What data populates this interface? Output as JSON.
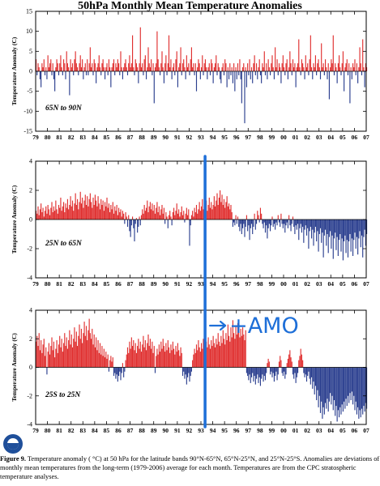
{
  "chart_data": [
    {
      "type": "bar",
      "panel": 1,
      "region_label": "65N to 90N",
      "ylabel": "Temperature Anomaly (C)",
      "ylim": [
        -15,
        15
      ],
      "yticks": [
        -15,
        -10,
        -5,
        0,
        5,
        10,
        15
      ],
      "xticks": [
        "79",
        "80",
        "81",
        "82",
        "83",
        "84",
        "85",
        "86",
        "87",
        "88",
        "89",
        "90",
        "91",
        "92",
        "93",
        "94",
        "95",
        "96",
        "97",
        "98",
        "99",
        "00",
        "01",
        "02",
        "03",
        "04",
        "05",
        "06",
        "07"
      ],
      "x_start": 1979.0,
      "x_end": 2007.0,
      "step": 0.08333,
      "positive_color": "#e03030",
      "negative_color": "#2b3f8f",
      "values": [
        3,
        -1,
        2,
        1,
        -2,
        -4,
        2,
        1,
        3,
        -1,
        1,
        -2,
        4,
        1,
        2,
        3,
        -1,
        2,
        -2,
        -5,
        1,
        3,
        2,
        -1,
        2,
        4,
        1,
        -1,
        3,
        2,
        -2,
        5,
        2,
        1,
        -6,
        3,
        1,
        2,
        -1,
        3,
        5,
        2,
        1,
        -1,
        2,
        4,
        1,
        3,
        -2,
        1,
        2,
        -1,
        3,
        -1,
        2,
        6,
        1,
        2,
        -1,
        3,
        2,
        -3,
        1,
        2,
        4,
        1,
        -1,
        2,
        3,
        1,
        -2,
        1,
        2,
        -1,
        3,
        1,
        -4,
        1,
        2,
        3,
        -1,
        2,
        1,
        3,
        2,
        -1,
        5,
        1,
        -2,
        1,
        2,
        3,
        1,
        -1,
        2,
        4,
        1,
        2,
        9,
        1,
        -1,
        3,
        2,
        1,
        -3,
        2,
        11,
        1,
        2,
        -1,
        3,
        4,
        -2,
        1,
        6,
        2,
        1,
        3,
        -1,
        2,
        -8,
        1,
        2,
        10,
        3,
        1,
        -1,
        2,
        5,
        1,
        -3,
        2,
        4,
        -1,
        2,
        9,
        1,
        3,
        -2,
        1,
        2,
        -1,
        3,
        5,
        -4,
        1,
        2,
        6,
        -1,
        2,
        3,
        1,
        -2,
        4,
        1,
        2,
        -1,
        3,
        6,
        1,
        2,
        -1,
        2,
        -5,
        1,
        3,
        2,
        -2,
        1,
        4,
        -1,
        2,
        3,
        1,
        -2,
        1,
        2,
        -1,
        3,
        2,
        -3,
        1,
        2,
        4,
        -1,
        2,
        1,
        -2,
        -3,
        1,
        2,
        -1,
        3,
        2,
        -4,
        1,
        -2,
        2,
        -1,
        1,
        -3,
        2,
        -5,
        1,
        -2,
        2,
        -1,
        3,
        -2,
        -8,
        1,
        2,
        -13,
        1,
        -4,
        2,
        -1,
        3,
        -2,
        1,
        -3,
        2,
        4,
        -1,
        2,
        -2,
        1,
        3,
        -1,
        -3,
        2,
        1,
        5,
        -1,
        2,
        -2,
        3,
        1,
        -1,
        2,
        4,
        1,
        -2,
        6,
        1,
        3,
        -1,
        2,
        1,
        -3,
        2,
        4,
        1,
        -1,
        2,
        3,
        -2,
        1,
        5,
        2,
        -1,
        3,
        1,
        2,
        -4,
        1,
        2,
        8,
        1,
        -1,
        3,
        2,
        1,
        -2,
        4,
        1,
        2,
        -1,
        3,
        9,
        1,
        -2,
        2,
        1,
        4,
        -1,
        2,
        3,
        1,
        -2,
        7,
        1,
        2,
        -1,
        3,
        1,
        -2,
        2,
        -7,
        1,
        3,
        2,
        9,
        -1,
        2,
        1,
        -3,
        2,
        4,
        1,
        -1,
        2,
        5,
        -5,
        1,
        2,
        3,
        -1,
        2,
        -8,
        1,
        -2,
        2,
        1,
        3,
        -1,
        2,
        -3,
        1,
        6,
        2,
        -1,
        8,
        1,
        -4,
        2,
        1,
        -1,
        3,
        2,
        1,
        -2,
        8,
        1,
        -1,
        2
      ],
      "polarity_switch_year": null
    },
    {
      "type": "bar",
      "panel": 2,
      "region_label": "25N to 65N",
      "ylabel": "Temperature Anomaly (C)",
      "ylim": [
        -4,
        4
      ],
      "yticks": [
        -4,
        -2,
        0,
        2,
        4
      ],
      "xticks": [
        "79",
        "80",
        "81",
        "82",
        "83",
        "84",
        "85",
        "86",
        "87",
        "88",
        "89",
        "90",
        "91",
        "92",
        "93",
        "94",
        "95",
        "96",
        "97",
        "98",
        "99",
        "00",
        "01",
        "02",
        "03",
        "04",
        "05",
        "06",
        "07"
      ],
      "x_start": 1979.0,
      "x_end": 2007.0,
      "step": 0.08333,
      "positive_color": "#e03030",
      "negative_color": "#2b3f8f",
      "values": [
        0.6,
        0.4,
        0.9,
        0.3,
        0.7,
        1.1,
        0.5,
        0.8,
        0.2,
        0.6,
        0.9,
        0.4,
        1.0,
        0.7,
        0.3,
        0.8,
        1.2,
        0.5,
        0.9,
        0.6,
        1.3,
        0.7,
        0.4,
        1.0,
        0.8,
        1.5,
        0.6,
        0.9,
        1.2,
        0.5,
        1.1,
        0.8,
        1.4,
        0.7,
        1.0,
        1.6,
        0.9,
        1.3,
        0.6,
        1.1,
        1.8,
        1.0,
        1.4,
        0.7,
        1.2,
        1.9,
        1.1,
        1.5,
        0.8,
        1.3,
        1.7,
        1.0,
        1.6,
        0.9,
        1.4,
        1.8,
        1.2,
        0.8,
        1.5,
        1.0,
        1.7,
        1.3,
        0.9,
        1.6,
        1.1,
        0.7,
        1.4,
        1.0,
        1.3,
        0.6,
        1.2,
        0.9,
        1.5,
        0.8,
        1.1,
        0.5,
        1.0,
        0.7,
        1.2,
        0.4,
        0.9,
        0.6,
        1.0,
        0.3,
        0.8,
        0.5,
        0.7,
        0.2,
        0.6,
        0.4,
        -0.3,
        0.5,
        0.2,
        -0.5,
        0.3,
        -0.8,
        -1.2,
        -0.4,
        0.2,
        -0.6,
        -1.5,
        -0.3,
        0.1,
        -0.9,
        -0.5,
        0.2,
        -0.4,
        0.3,
        0.7,
        0.4,
        1.0,
        0.6,
        0.8,
        1.3,
        0.5,
        0.9,
        1.2,
        0.7,
        1.1,
        0.6,
        1.0,
        0.4,
        0.8,
        1.2,
        0.5,
        0.9,
        0.3,
        0.7,
        1.0,
        0.4,
        0.8,
        -0.3,
        0.5,
        0.2,
        -0.6,
        0.3,
        0.6,
        0.2,
        -0.4,
        0.5,
        0.8,
        0.3,
        0.6,
        1.1,
        0.4,
        0.7,
        0.2,
        0.5,
        0.9,
        0.3,
        0.6,
        -0.2,
        0.4,
        0.8,
        0.3,
        0.7,
        -1.8,
        -0.4,
        0.3,
        0.6,
        0.2,
        0.8,
        0.5,
        1.0,
        0.4,
        0.7,
        1.2,
        0.6,
        0.9,
        1.4,
        0.7,
        1.1,
        0.8,
        1.3,
        0.6,
        1.0,
        1.5,
        0.8,
        1.2,
        0.7,
        1.0,
        1.6,
        0.9,
        1.3,
        1.8,
        1.0,
        1.5,
        2.0,
        1.2,
        1.7,
        1.0,
        1.4,
        0.8,
        1.2,
        1.6,
        0.9,
        1.1,
        0.7,
        1.0,
        0.5,
        -0.5,
        -0.2,
        -0.4,
        0.3,
        -0.3,
        0.2,
        -0.5,
        -0.8,
        -0.3,
        -1.0,
        -0.6,
        -0.3,
        -1.2,
        -0.5,
        0.3,
        -0.8,
        -0.4,
        -1.4,
        -0.6,
        -0.3,
        -1.0,
        -0.5,
        0.4,
        -0.7,
        -0.3,
        0.6,
        0.3,
        -0.2,
        0.8,
        0.4,
        -0.3,
        -0.6,
        -0.2,
        -0.9,
        -0.4,
        -1.3,
        -0.6,
        -0.3,
        -0.8,
        -0.4,
        0.2,
        -0.5,
        -0.3,
        -0.7,
        -0.2,
        -0.4,
        0.3,
        -0.2,
        -0.5,
        0.4,
        -0.3,
        -0.6,
        -0.3,
        -0.9,
        -0.4,
        -0.2,
        -0.6,
        0.3,
        -0.4,
        -0.8,
        -0.3,
        0.2,
        -0.5,
        -1.0,
        -0.4,
        -0.7,
        -0.3,
        -1.4,
        -0.6,
        -0.3,
        -0.9,
        -0.5,
        -1.6,
        -0.7,
        -0.4,
        -1.1,
        -0.6,
        -2.0,
        -0.8,
        -0.5,
        -1.3,
        -0.7,
        -1.8,
        -0.9,
        -0.5,
        -1.5,
        -0.8,
        -2.2,
        -1.0,
        -0.6,
        -1.6,
        -0.9,
        -2.6,
        -1.1,
        -0.7,
        -1.8,
        -1.0,
        -2.3,
        -1.2,
        -0.8,
        -2.0,
        -1.1,
        -2.7,
        -1.3,
        -0.9,
        -2.1,
        -1.2,
        -2.5,
        -1.4,
        -1.0,
        -2.2,
        -1.3,
        -2.8,
        -1.5,
        -1.1,
        -2.3,
        -1.4,
        -2.6,
        -1.5,
        -1.0,
        -2.2,
        -1.3,
        -2.5,
        -1.4,
        -0.9,
        -2.0,
        -1.2,
        -2.4,
        -1.3,
        -0.8,
        -1.9,
        -1.1,
        -2.6,
        -1.2,
        -0.7,
        -1.8,
        -1.0,
        -2.5,
        -1.1,
        -0.6,
        -1.5,
        -2.2,
        -1.0,
        -1.7,
        -2.4,
        -1.2,
        -1.9
      ],
      "polarity_switch_year": 1993.35
    },
    {
      "type": "bar",
      "panel": 3,
      "region_label": "25S to 25N",
      "ylabel": "Temperature Anomaly (C)",
      "ylim": [
        -4,
        4
      ],
      "yticks": [
        -4,
        -2,
        0,
        2,
        4
      ],
      "xticks": [
        "79",
        "80",
        "81",
        "82",
        "83",
        "84",
        "85",
        "86",
        "87",
        "88",
        "89",
        "90",
        "91",
        "92",
        "93",
        "94",
        "95",
        "96",
        "97",
        "98",
        "99",
        "00",
        "01",
        "02",
        "03",
        "04",
        "05",
        "06",
        "07"
      ],
      "x_start": 1979.0,
      "x_end": 2007.0,
      "step": 0.08333,
      "positive_color": "#e03030",
      "negative_color": "#2b3f8f",
      "values": [
        1.8,
        2.2,
        1.5,
        2.4,
        1.2,
        1.9,
        1.0,
        1.6,
        2.0,
        0.8,
        1.4,
        -0.5,
        1.1,
        1.7,
        0.9,
        1.5,
        2.1,
        1.2,
        1.8,
        0.7,
        1.3,
        1.9,
        1.0,
        1.6,
        2.2,
        1.4,
        2.0,
        1.1,
        1.7,
        2.4,
        1.5,
        2.1,
        1.3,
        1.9,
        2.6,
        1.6,
        2.3,
        1.4,
        2.0,
        2.8,
        1.8,
        2.5,
        1.5,
        2.2,
        3.0,
        2.0,
        2.7,
        1.7,
        2.4,
        3.2,
        2.2,
        2.9,
        1.9,
        2.6,
        3.4,
        2.4,
        2.0,
        2.7,
        1.6,
        2.3,
        1.4,
        2.1,
        1.2,
        1.9,
        1.0,
        1.7,
        0.9,
        1.5,
        0.8,
        1.3,
        0.7,
        1.1,
        0.6,
        0.9,
        -0.3,
        0.5,
        0.8,
        0.4,
        0.7,
        -0.6,
        -0.4,
        -0.8,
        -0.5,
        -1.0,
        -0.6,
        -0.3,
        -0.9,
        -0.4,
        0.3,
        -0.7,
        -0.3,
        0.5,
        0.9,
        1.4,
        1.0,
        1.8,
        1.3,
        2.1,
        1.5,
        1.9,
        1.2,
        1.7,
        1.0,
        1.5,
        2.0,
        1.3,
        1.8,
        1.1,
        1.6,
        2.2,
        1.4,
        1.9,
        1.2,
        1.7,
        2.3,
        1.5,
        2.0,
        1.3,
        1.8,
        1.0,
        1.5,
        -0.4,
        0.8,
        1.3,
        0.9,
        1.6,
        1.1,
        1.8,
        1.3,
        2.0,
        1.5,
        1.1,
        1.7,
        1.2,
        1.9,
        1.4,
        1.0,
        1.6,
        1.2,
        1.8,
        1.3,
        0.9,
        1.5,
        1.1,
        1.7,
        1.2,
        0.8,
        1.4,
        1.0,
        -0.6,
        -0.3,
        -0.8,
        -0.5,
        -1.2,
        -0.7,
        -0.4,
        -1.0,
        -0.6,
        -0.3,
        0.5,
        0.9,
        1.3,
        1.0,
        1.6,
        1.2,
        1.9,
        1.4,
        1.1,
        1.7,
        1.3,
        2.0,
        1.5,
        1.2,
        1.8,
        1.4,
        2.1,
        1.6,
        1.3,
        1.9,
        1.5,
        2.2,
        1.7,
        1.4,
        2.0,
        1.6,
        2.4,
        1.8,
        1.5,
        2.2,
        1.7,
        2.6,
        2.0,
        1.6,
        2.4,
        1.9,
        3.0,
        2.2,
        1.8,
        2.8,
        2.1,
        3.3,
        2.4,
        2.0,
        2.9,
        2.3,
        3.1,
        2.5,
        2.1,
        2.7,
        2.2,
        2.8,
        2.3,
        1.9,
        2.6,
        -0.4,
        -0.6,
        -0.9,
        -0.5,
        -1.1,
        -0.7,
        -0.4,
        -1.0,
        -0.6,
        -1.2,
        -0.8,
        -0.5,
        -1.1,
        -0.7,
        -1.3,
        -0.8,
        -0.5,
        -1.0,
        -0.6,
        -0.9,
        -0.4,
        0.3,
        0.6,
        0.4,
        -0.5,
        -0.3,
        -0.7,
        -0.4,
        -1.0,
        -0.6,
        -0.3,
        -0.9,
        -0.5,
        0.4,
        0.8,
        0.5,
        -0.4,
        -0.6,
        -0.3,
        -0.8,
        -0.5,
        0.3,
        0.6,
        0.9,
        1.2,
        0.7,
        0.4,
        -0.5,
        -0.8,
        -0.4,
        -1.1,
        -0.7,
        -0.4,
        0.5,
        0.8,
        1.3,
        0.9,
        0.5,
        -0.4,
        -0.7,
        -0.5,
        -1.0,
        -0.6,
        -0.3,
        -0.8,
        -1.2,
        -0.7,
        -1.5,
        -1.0,
        -1.9,
        -1.3,
        -2.3,
        -1.6,
        -2.8,
        -2.0,
        -3.2,
        -2.4,
        -3.6,
        -2.8,
        -3.3,
        -2.5,
        -2.9,
        -2.2,
        -3.1,
        -2.4,
        -1.8,
        -2.6,
        -2.0,
        -3.0,
        -2.3,
        -3.4,
        -2.7,
        -3.8,
        -3.0,
        -3.5,
        -2.8,
        -3.3,
        -2.6,
        -3.1,
        -2.4,
        -2.9,
        -2.2,
        -2.7,
        -2.0,
        -2.5,
        -1.8,
        -2.3,
        -1.7,
        -2.6,
        -2.0,
        -3.0,
        -2.4,
        -3.3,
        -2.8,
        -3.6,
        -3.0,
        -3.5,
        -2.9,
        -3.3,
        -2.7,
        -3.1,
        -2.5,
        -2.9,
        -2.3,
        -2.7,
        -3.2,
        -2.6,
        -3.5,
        -2.9,
        -3.7,
        -3.1,
        -3.4
      ],
      "polarity_switch_year": 1993.35
    }
  ],
  "title": "50hPa Monthly Mean Temperature Anomalies",
  "caption": {
    "label": "Figure 9.",
    "text": " Temperature anomaly ( °C) at 50 hPa for the latitude bands 90°N-65°N, 65°N-25°N, and 25°N-25°S. Anomalies are deviations of monthly mean temperatures from the long-term (1979-2006) average for each month. Temperatures are from the CPC stratospheric temperature analyses."
  },
  "annotation": {
    "text": "→+AMO",
    "color": "#1e6fd8"
  }
}
